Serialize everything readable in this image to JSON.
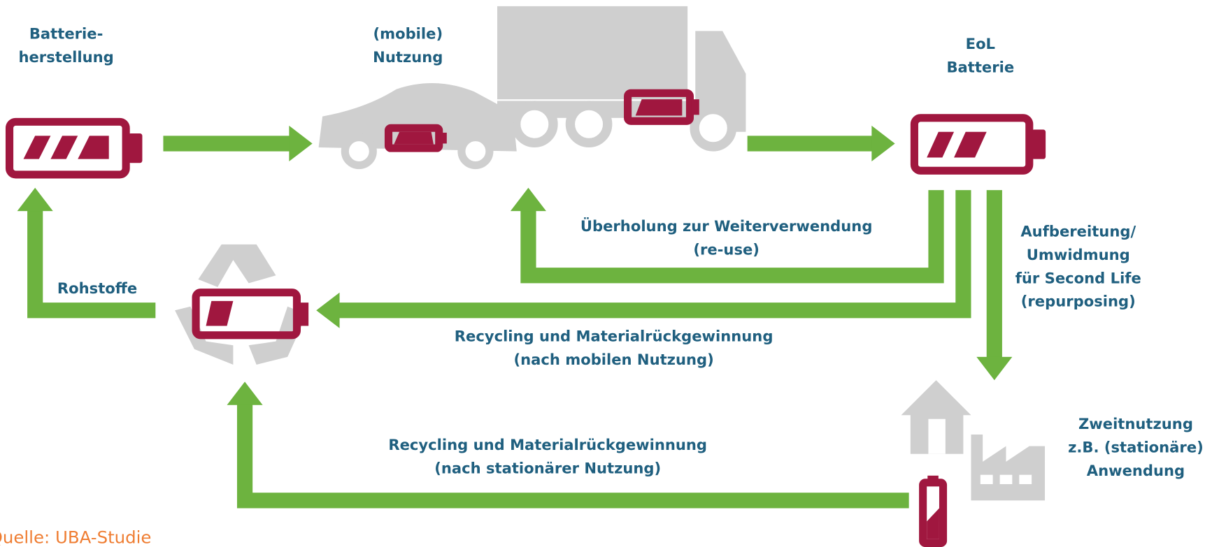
{
  "labels": {
    "production": [
      "Batterie-",
      "herstellung"
    ],
    "usage": [
      "(mobile)",
      "Nutzung"
    ],
    "eol": [
      "EoL",
      "Batterie"
    ],
    "reuse": [
      "Überholung zur Weiterverwendung",
      "(re-use)"
    ],
    "repurposing": [
      "Aufbereitung/",
      "Umwidmung",
      "für Second Life",
      "(repurposing)"
    ],
    "raw": [
      "Rohstoffe"
    ],
    "recycling_mobile": [
      "Recycling und Materialrückgewinnung",
      "(nach mobilen Nutzung)"
    ],
    "recycling_stationary": [
      "Recycling und Materialrückgewinnung",
      "(nach stationärer Nutzung)"
    ],
    "second_use": [
      "Zweitnutzung",
      "z.B. (stationäre)",
      "Anwendung"
    ]
  },
  "source": "Quelle: UBA-Studie"
}
